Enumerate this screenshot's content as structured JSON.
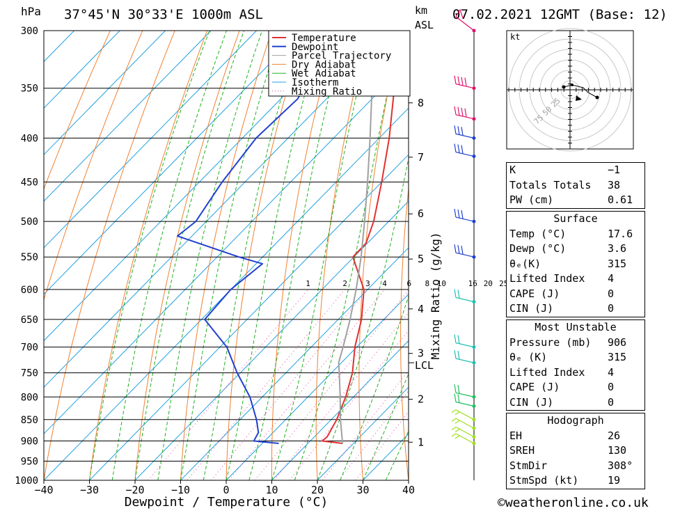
{
  "header": {
    "hpa_label": "hPa",
    "location": "37°45'N  30°33'E  1000m  ASL",
    "km_label": "km",
    "asl_label": "ASL",
    "datetime": "07.02.2021  12GMT  (Base: 12)"
  },
  "credit": "©weatheronline.co.uk",
  "chart_data": {
    "type": "skew-t",
    "xlabel": "Dewpoint / Temperature (°C)",
    "ylabel_left": "hPa",
    "ylabel_mixing": "Mixing Ratio (g/kg)",
    "xlim": [
      -40,
      40
    ],
    "ylim_hpa": [
      1000,
      300
    ],
    "x_ticks": [
      -40,
      -30,
      -20,
      -10,
      0,
      10,
      20,
      30,
      40
    ],
    "x_tick_labels": [
      "−40",
      "−30",
      "−20",
      "−10",
      "0",
      "10",
      "20",
      "30",
      "40"
    ],
    "pressure_levels": [
      300,
      350,
      400,
      450,
      500,
      550,
      600,
      650,
      700,
      750,
      800,
      850,
      900,
      950,
      1000
    ],
    "height_km": [
      {
        "km": "8",
        "hpa": 364
      },
      {
        "km": "7",
        "hpa": 421
      },
      {
        "km": "6",
        "hpa": 490
      },
      {
        "km": "5",
        "hpa": 553
      },
      {
        "km": "4",
        "hpa": 632
      },
      {
        "km": "3",
        "hpa": 712
      },
      {
        "km": "2",
        "hpa": 805
      },
      {
        "km": "1",
        "hpa": 903
      }
    ],
    "lcl": {
      "label": "LCL",
      "hpa": 730
    },
    "mixing_ratio_labels": [
      "1",
      "2",
      "3",
      "4",
      "6",
      "8",
      "10",
      "16",
      "20",
      "25"
    ],
    "mixing_ratio_values": [
      1,
      2,
      3,
      4,
      6,
      8,
      10,
      16,
      20,
      25
    ],
    "legend": {
      "position": "top-right",
      "items": [
        {
          "name": "Temperature",
          "color": "#e03030",
          "style": "solid"
        },
        {
          "name": "Dewpoint",
          "color": "#2040d0",
          "style": "solid"
        },
        {
          "name": "Parcel Trajectory",
          "color": "#a0a0a0",
          "style": "solid"
        },
        {
          "name": "Dry Adiabat",
          "color": "#f08030",
          "style": "solid"
        },
        {
          "name": "Wet Adiabat",
          "color": "#20b020",
          "style": "solid"
        },
        {
          "name": "Isotherm",
          "color": "#20a0e0",
          "style": "solid"
        },
        {
          "name": "Mixing Ratio",
          "color": "#e040a0",
          "style": "dotted"
        }
      ]
    },
    "series": [
      {
        "name": "Temperature",
        "color": "#e03030",
        "points": [
          [
            906,
            17.6
          ],
          [
            900,
            12.6
          ],
          [
            890,
            12.8
          ],
          [
            850,
            11.2
          ],
          [
            800,
            8.3
          ],
          [
            750,
            4.6
          ],
          [
            700,
            -0.4
          ],
          [
            650,
            -4.9
          ],
          [
            600,
            -10.8
          ],
          [
            550,
            -20.2
          ],
          [
            530,
            -20.3
          ],
          [
            500,
            -23.3
          ],
          [
            450,
            -30.0
          ],
          [
            400,
            -37.8
          ],
          [
            350,
            -47.4
          ],
          [
            300,
            -57.0
          ]
        ]
      },
      {
        "name": "Dewpoint",
        "color": "#2040d0",
        "points": [
          [
            906,
            3.6
          ],
          [
            900,
            -2.4
          ],
          [
            880,
            -3.2
          ],
          [
            850,
            -6.4
          ],
          [
            800,
            -12.7
          ],
          [
            750,
            -20.7
          ],
          [
            700,
            -28.5
          ],
          [
            650,
            -39.3
          ],
          [
            600,
            -40.0
          ],
          [
            560,
            -38.6
          ],
          [
            550,
            -45.2
          ],
          [
            520,
            -63.2
          ],
          [
            500,
            -62.3
          ],
          [
            450,
            -65.0
          ],
          [
            400,
            -67.0
          ],
          [
            360,
            -66.3
          ],
          [
            340,
            -68.3
          ],
          [
            300,
            -82.0
          ]
        ]
      },
      {
        "name": "Parcel Trajectory",
        "color": "#a0a0a0",
        "points": [
          [
            906,
            17.6
          ],
          [
            850,
            12.0
          ],
          [
            800,
            7.1
          ],
          [
            750,
            1.7
          ],
          [
            730,
            -0.6
          ],
          [
            700,
            -3.0
          ],
          [
            650,
            -7.4
          ],
          [
            600,
            -12.5
          ],
          [
            550,
            -18.4
          ],
          [
            500,
            -25.3
          ],
          [
            450,
            -33.1
          ],
          [
            400,
            -42.0
          ],
          [
            350,
            -52.3
          ],
          [
            300,
            -64.0
          ]
        ]
      }
    ],
    "wind_barbs_hpa": [
      906,
      890,
      870,
      850,
      820,
      800,
      730,
      700,
      620,
      550,
      500,
      420,
      400,
      380,
      350,
      300
    ],
    "hodograph": {
      "unit_label": "kt",
      "ring_labels": [
        "25",
        "50",
        "75"
      ]
    },
    "indices": {
      "general": [
        {
          "label": "K",
          "value": "−1"
        },
        {
          "label": "Totals Totals",
          "value": "38"
        },
        {
          "label": "PW (cm)",
          "value": "0.61"
        }
      ],
      "surface_title": "Surface",
      "surface": [
        {
          "label": "Temp (°C)",
          "value": "17.6"
        },
        {
          "label": "Dewp (°C)",
          "value": "3.6"
        },
        {
          "label": "θₑ(K)",
          "value": "315"
        },
        {
          "label": "Lifted Index",
          "value": "4"
        },
        {
          "label": "CAPE (J)",
          "value": "0"
        },
        {
          "label": "CIN (J)",
          "value": "0"
        }
      ],
      "mu_title": "Most Unstable",
      "mu": [
        {
          "label": "Pressure (mb)",
          "value": "906"
        },
        {
          "label": "θₑ (K)",
          "value": "315"
        },
        {
          "label": "Lifted Index",
          "value": "4"
        },
        {
          "label": "CAPE (J)",
          "value": "0"
        },
        {
          "label": "CIN (J)",
          "value": "0"
        }
      ],
      "hodo_title": "Hodograph",
      "hodo": [
        {
          "label": "EH",
          "value": "26"
        },
        {
          "label": "SREH",
          "value": "130"
        },
        {
          "label": "StmDir",
          "value": "308°"
        },
        {
          "label": "StmSpd (kt)",
          "value": "19"
        }
      ]
    }
  }
}
